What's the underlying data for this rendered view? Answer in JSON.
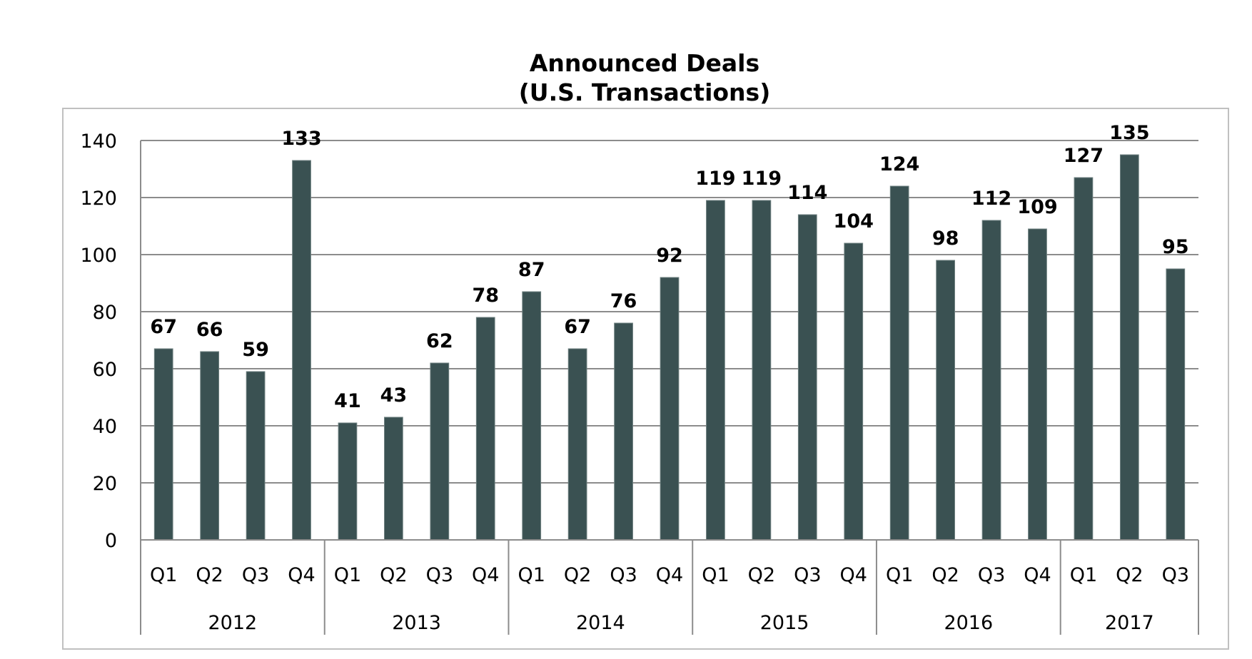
{
  "chart_data": {
    "type": "bar",
    "title": [
      "Announced Deals",
      "(U.S. Transactions)"
    ],
    "xlabel": "",
    "ylabel": "",
    "ylim": [
      0,
      140
    ],
    "yticks": [
      0,
      20,
      40,
      60,
      80,
      100,
      120,
      140
    ],
    "grid": true,
    "legend": "none",
    "bar_color": "#3A5152",
    "groups": [
      {
        "label": "2012",
        "quarters": [
          "Q1",
          "Q2",
          "Q3",
          "Q4"
        ]
      },
      {
        "label": "2013",
        "quarters": [
          "Q1",
          "Q2",
          "Q3",
          "Q4"
        ]
      },
      {
        "label": "2014",
        "quarters": [
          "Q1",
          "Q2",
          "Q3",
          "Q4"
        ]
      },
      {
        "label": "2015",
        "quarters": [
          "Q1",
          "Q2",
          "Q3",
          "Q4"
        ]
      },
      {
        "label": "2016",
        "quarters": [
          "Q1",
          "Q2",
          "Q3",
          "Q4"
        ]
      },
      {
        "label": "2017",
        "quarters": [
          "Q1",
          "Q2",
          "Q3"
        ]
      }
    ],
    "categories": [
      "2012 Q1",
      "2012 Q2",
      "2012 Q3",
      "2012 Q4",
      "2013 Q1",
      "2013 Q2",
      "2013 Q3",
      "2013 Q4",
      "2014 Q1",
      "2014 Q2",
      "2014 Q3",
      "2014 Q4",
      "2015 Q1",
      "2015 Q2",
      "2015 Q3",
      "2015 Q4",
      "2016 Q1",
      "2016 Q2",
      "2016 Q3",
      "2016 Q4",
      "2017 Q1",
      "2017 Q2",
      "2017 Q3"
    ],
    "values": [
      67,
      66,
      59,
      133,
      41,
      43,
      62,
      78,
      87,
      67,
      76,
      92,
      119,
      119,
      114,
      104,
      124,
      98,
      112,
      109,
      127,
      135,
      95
    ],
    "data_labels": [
      "67",
      "66",
      "59",
      "133",
      "41",
      "43",
      "62",
      "78",
      "87",
      "67",
      "76",
      "92",
      "119",
      "119",
      "114",
      "104",
      "124",
      "98",
      "112",
      "109",
      "127",
      "135",
      "95"
    ]
  }
}
